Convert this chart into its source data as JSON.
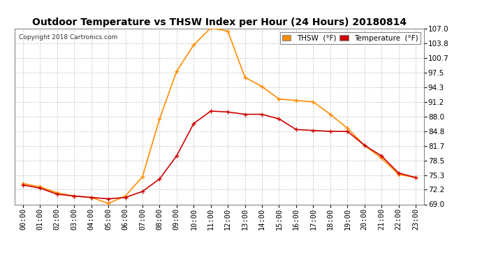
{
  "title": "Outdoor Temperature vs THSW Index per Hour (24 Hours) 20180814",
  "copyright": "Copyright 2018 Cartronics.com",
  "hours": [
    "00:00",
    "01:00",
    "02:00",
    "03:00",
    "04:00",
    "05:00",
    "06:00",
    "07:00",
    "08:00",
    "09:00",
    "10:00",
    "11:00",
    "12:00",
    "13:00",
    "14:00",
    "15:00",
    "16:00",
    "17:00",
    "18:00",
    "19:00",
    "20:00",
    "21:00",
    "22:00",
    "23:00"
  ],
  "temperature": [
    73.2,
    72.5,
    71.2,
    70.8,
    70.5,
    70.2,
    70.5,
    71.8,
    74.5,
    79.5,
    86.5,
    89.2,
    89.0,
    88.5,
    88.5,
    87.5,
    85.2,
    85.0,
    84.8,
    84.8,
    81.8,
    79.5,
    75.8,
    74.8
  ],
  "thsw": [
    73.5,
    72.8,
    71.5,
    70.8,
    70.5,
    69.2,
    70.8,
    75.0,
    87.5,
    97.8,
    103.5,
    107.2,
    106.5,
    96.5,
    94.5,
    91.8,
    91.5,
    91.2,
    88.5,
    85.5,
    81.8,
    79.0,
    75.5,
    74.8
  ],
  "temp_color": "#cc0000",
  "thsw_color": "#ff8c00",
  "marker": "+",
  "markersize": 5,
  "linewidth": 1.2,
  "ylim": [
    69.0,
    107.0
  ],
  "yticks": [
    69.0,
    72.2,
    75.3,
    78.5,
    81.7,
    84.8,
    88.0,
    91.2,
    94.3,
    97.5,
    100.7,
    103.8,
    107.0
  ],
  "bg_color": "#ffffff",
  "grid_color": "#cccccc",
  "title_fontsize": 10,
  "tick_fontsize": 7.5,
  "legend_thsw_label": "THSW  (°F)",
  "legend_temp_label": "Temperature  (°F)"
}
